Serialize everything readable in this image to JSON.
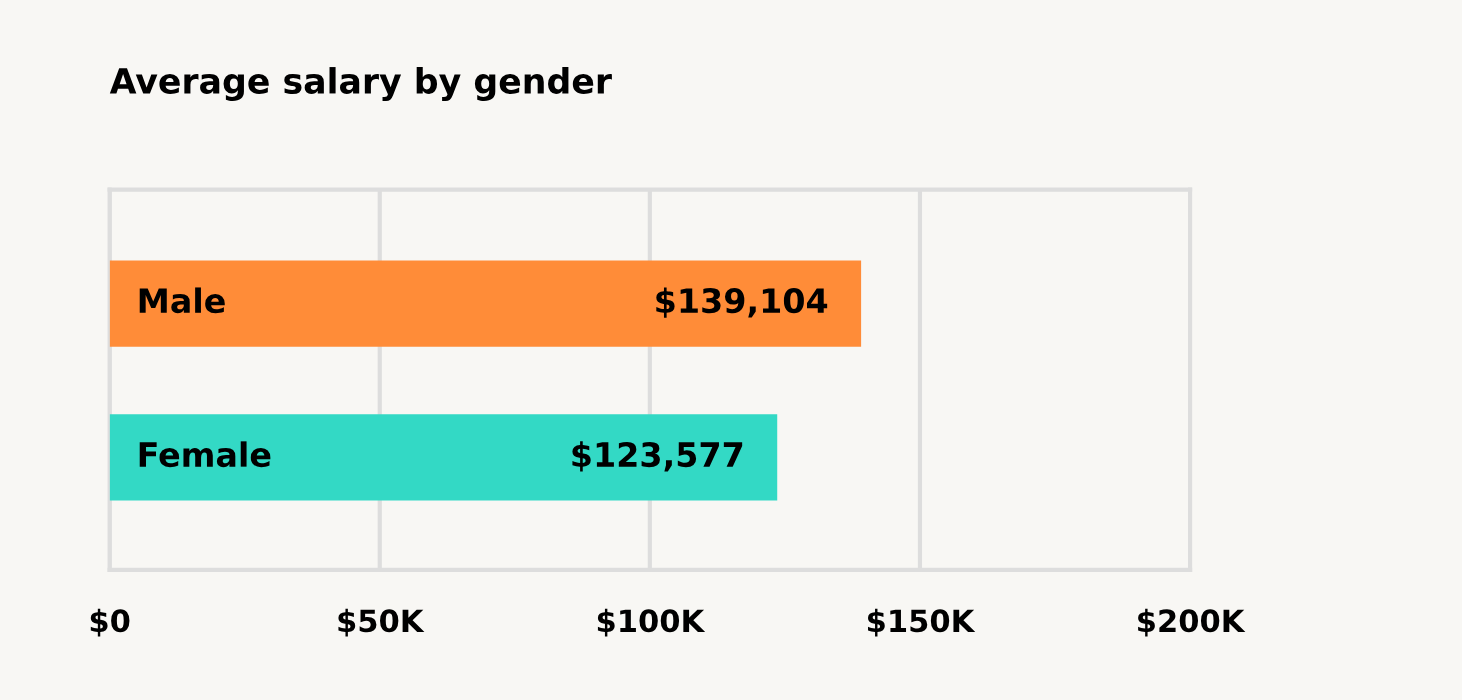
{
  "chart_data": {
    "type": "bar",
    "orientation": "horizontal",
    "title": "Average salary by gender",
    "categories": [
      "Male",
      "Female"
    ],
    "values": [
      139104,
      123577
    ],
    "colors": [
      "#ff8c38",
      "#33d9c5"
    ],
    "value_labels": [
      "$139,104",
      "$123,577"
    ],
    "xlim": [
      0,
      200000
    ],
    "xticks": [
      {
        "value": 0,
        "label": "$0"
      },
      {
        "value": 50000,
        "label": "$50K"
      },
      {
        "value": 100000,
        "label": "$100K"
      },
      {
        "value": 150000,
        "label": "$150K"
      },
      {
        "value": 200000,
        "label": "$200K"
      }
    ],
    "grid": "x",
    "tick_labels": "x"
  }
}
